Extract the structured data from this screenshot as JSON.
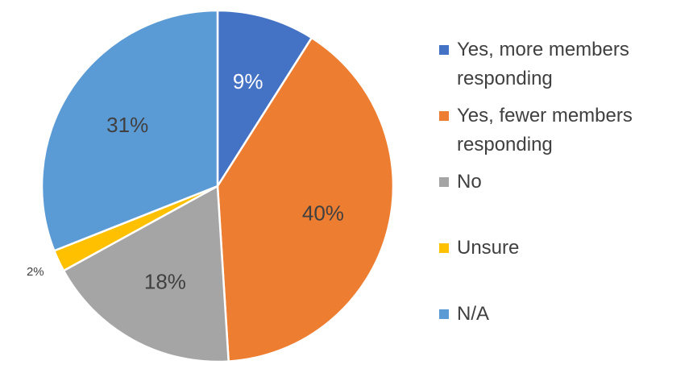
{
  "chart_data": {
    "type": "pie",
    "title": "",
    "start_angle_deg": 0,
    "direction": "clockwise",
    "slices": [
      {
        "label": "Yes, more members responding",
        "value": 9,
        "display": "9%",
        "color": "#4472C4",
        "label_color": "#ffffff",
        "label_position": "inside"
      },
      {
        "label": "Yes, fewer members responding",
        "value": 40,
        "display": "40%",
        "color": "#ED7D31",
        "label_color": "#404040",
        "label_position": "inside"
      },
      {
        "label": "No",
        "value": 18,
        "display": "18%",
        "color": "#A5A5A5",
        "label_color": "#404040",
        "label_position": "inside"
      },
      {
        "label": "Unsure",
        "value": 2,
        "display": "2%",
        "color": "#FFC000",
        "label_color": "#404040",
        "label_position": "outside"
      },
      {
        "label": "N/A",
        "value": 31,
        "display": "31%",
        "color": "#5B9BD5",
        "label_color": "#404040",
        "label_position": "inside"
      }
    ],
    "legend": {
      "position": "right",
      "items": [
        "Yes, more members responding",
        "Yes, fewer members responding",
        "No",
        "Unsure",
        "N/A"
      ]
    }
  }
}
